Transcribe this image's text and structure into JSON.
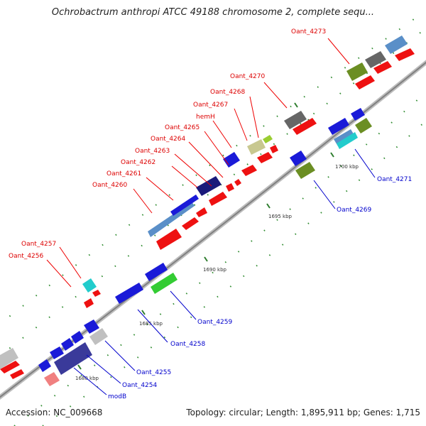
{
  "title": "Ochrobactrum anthropi ATCC 49188 chromosome 2, complete sequ...",
  "footer": {
    "accession": "Accession: NC_009668",
    "summary": "Topology: circular; Length: 1,895,911 bp; Genes: 1,715"
  },
  "colors": {
    "forward_label": "#dd0000",
    "reverse_label": "#0000cc",
    "backbone": "#a0a0a0"
  },
  "ticks": [
    "1680 kbp",
    "1685 kbp",
    "1690 kbp",
    "1695 kbp",
    "1700 kbp"
  ],
  "labels_forward": [
    "Oant_4273",
    "Oant_4270",
    "Oant_4268",
    "Oant_4267",
    "hemH",
    "Oant_4265",
    "Oant_4264",
    "Oant_4263",
    "Oant_4262",
    "Oant_4261",
    "Oant_4260",
    "Oant_4257",
    "Oant_4256"
  ],
  "labels_reverse": [
    "Oant_4271",
    "Oant_4269",
    "Oant_4259",
    "Oant_4258",
    "Oant_4255",
    "Oant_4254",
    "modB"
  ]
}
